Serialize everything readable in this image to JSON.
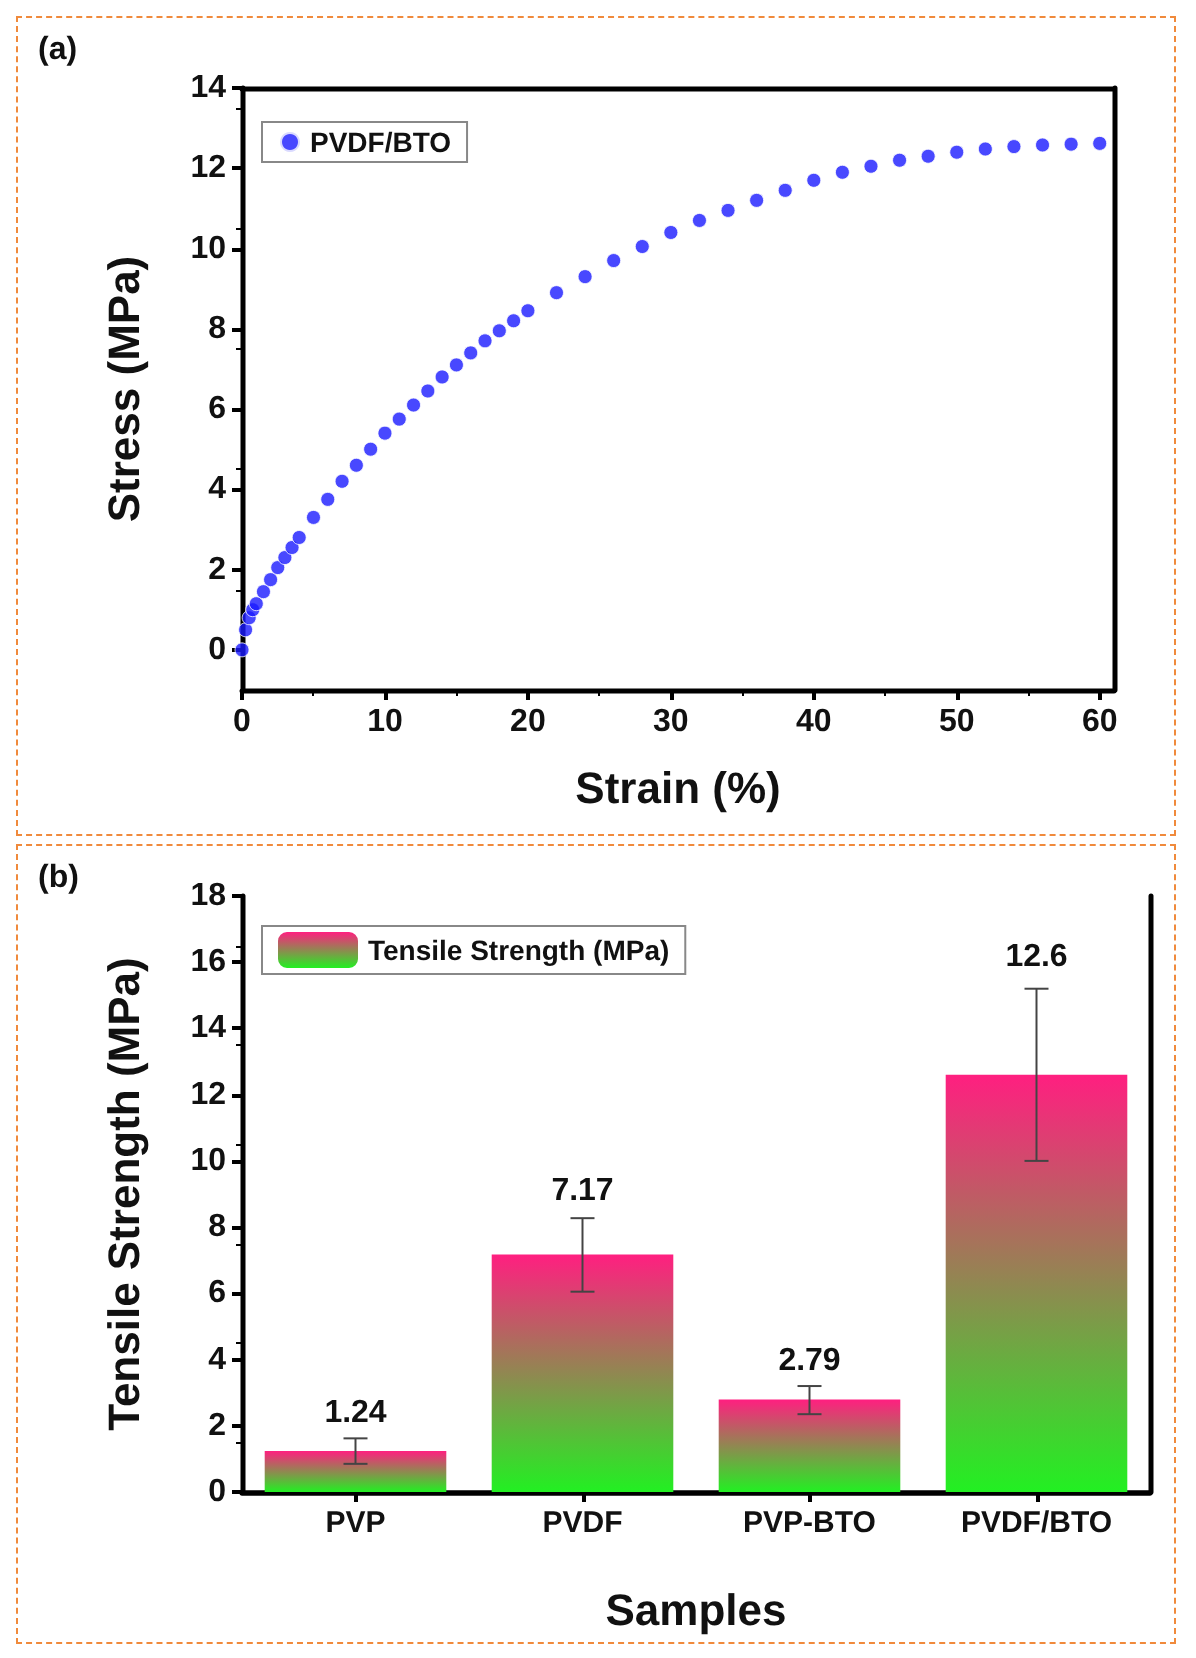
{
  "chart_data": [
    {
      "type": "scatter",
      "xlabel": "Strain (%)",
      "ylabel": "Stress (MPa)",
      "annotations": [
        "(a)"
      ],
      "xlim": [
        0,
        61
      ],
      "xticks": [
        0,
        10,
        20,
        30,
        40,
        50,
        60
      ],
      "ylim": [
        -1,
        14
      ],
      "yticks": [
        0,
        2,
        4,
        6,
        8,
        10,
        12,
        14
      ],
      "grid": false,
      "legend": "top left",
      "marker": "circle",
      "series": [
        {
          "name": "PVDF/BTO",
          "color": "#1a1aff",
          "x": [
            0,
            0.25,
            0.5,
            0.75,
            1,
            1.5,
            2,
            2.5,
            3,
            3.5,
            4,
            5,
            6,
            7,
            8,
            9,
            10,
            11,
            12,
            13,
            14,
            15,
            16,
            17,
            18,
            19,
            20,
            22,
            24,
            26,
            28,
            30,
            32,
            34,
            36,
            38,
            40,
            42,
            44,
            46,
            48,
            50,
            52,
            54,
            56,
            58,
            60
          ],
          "values": [
            0,
            0.5,
            0.8,
            1.0,
            1.15,
            1.45,
            1.75,
            2.05,
            2.3,
            2.55,
            2.8,
            3.3,
            3.75,
            4.2,
            4.6,
            5.0,
            5.4,
            5.75,
            6.1,
            6.45,
            6.8,
            7.1,
            7.4,
            7.7,
            7.95,
            8.2,
            8.45,
            8.9,
            9.3,
            9.7,
            10.05,
            10.4,
            10.7,
            10.95,
            11.2,
            11.45,
            11.7,
            11.9,
            12.05,
            12.2,
            12.3,
            12.4,
            12.48,
            12.54,
            12.58,
            12.6,
            12.62
          ]
        }
      ]
    },
    {
      "type": "bar",
      "xlabel": "Samples",
      "ylabel": "Tensile Strength (MPa)",
      "annotations": [
        "(b)"
      ],
      "categories": [
        "PVP",
        "PVDF",
        "PVP-BTO",
        "PVDF/BTO"
      ],
      "ylim": [
        0,
        18
      ],
      "yticks": [
        0,
        2,
        4,
        6,
        8,
        10,
        12,
        14,
        16,
        18
      ],
      "grid": false,
      "legend": "top left",
      "data_labels": true,
      "series": [
        {
          "name": "Tensile Strength (MPa)",
          "color": "#ff1f80",
          "values": [
            1.24,
            7.17,
            2.79,
            12.6
          ],
          "errors": [
            [
              0.85,
              1.62
            ],
            [
              6.05,
              8.27
            ],
            [
              2.35,
              3.2
            ],
            [
              10.0,
              15.2
            ]
          ]
        }
      ]
    }
  ]
}
